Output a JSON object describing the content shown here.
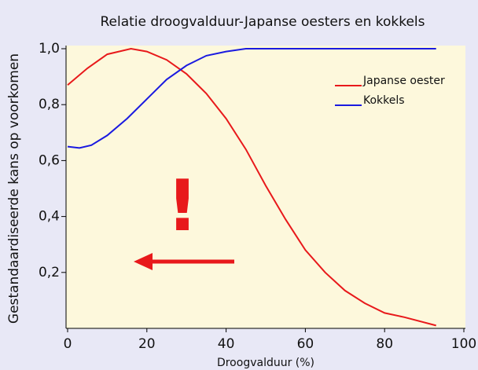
{
  "chart_data": {
    "type": "line",
    "title": "Relatie droogvalduur-Japanse oesters en kokkels",
    "x_label": "Droogvalduur (%)",
    "y_label": "Gestandaardiseerde kans op voorkomen",
    "series": [
      {
        "name": "Japanse oester",
        "color": "#e8191b",
        "x": [
          0,
          5,
          10,
          16,
          20,
          25,
          30,
          35,
          40,
          45,
          50,
          55,
          60,
          65,
          70,
          75,
          80,
          85,
          93
        ],
        "values": [
          0.87,
          0.93,
          0.98,
          1.0,
          0.99,
          0.96,
          0.91,
          0.84,
          0.75,
          0.64,
          0.51,
          0.39,
          0.28,
          0.2,
          0.135,
          0.09,
          0.055,
          0.04,
          0.01
        ]
      },
      {
        "name": "Kokkels",
        "color": "#1a1ae0",
        "x": [
          0,
          3,
          6,
          10,
          15,
          20,
          25,
          30,
          35,
          40,
          45,
          60,
          80,
          93
        ],
        "values": [
          0.65,
          0.645,
          0.655,
          0.69,
          0.75,
          0.82,
          0.89,
          0.94,
          0.975,
          0.99,
          1.0,
          1.0,
          1.0,
          1.0
        ]
      }
    ],
    "xlim": [
      0,
      100
    ],
    "xticks": [
      0,
      20,
      40,
      60,
      80,
      100
    ],
    "ylim": [
      0,
      1
    ],
    "yticks": [
      {
        "value": 0.2,
        "label": "0,2"
      },
      {
        "value": 0.4,
        "label": "0,4"
      },
      {
        "value": 0.6,
        "label": "0,6"
      },
      {
        "value": 0.8,
        "label": "0,8"
      },
      {
        "value": 1.0,
        "label": "1,0"
      }
    ],
    "grid": false,
    "legend": "upper right",
    "annotation": "!"
  }
}
